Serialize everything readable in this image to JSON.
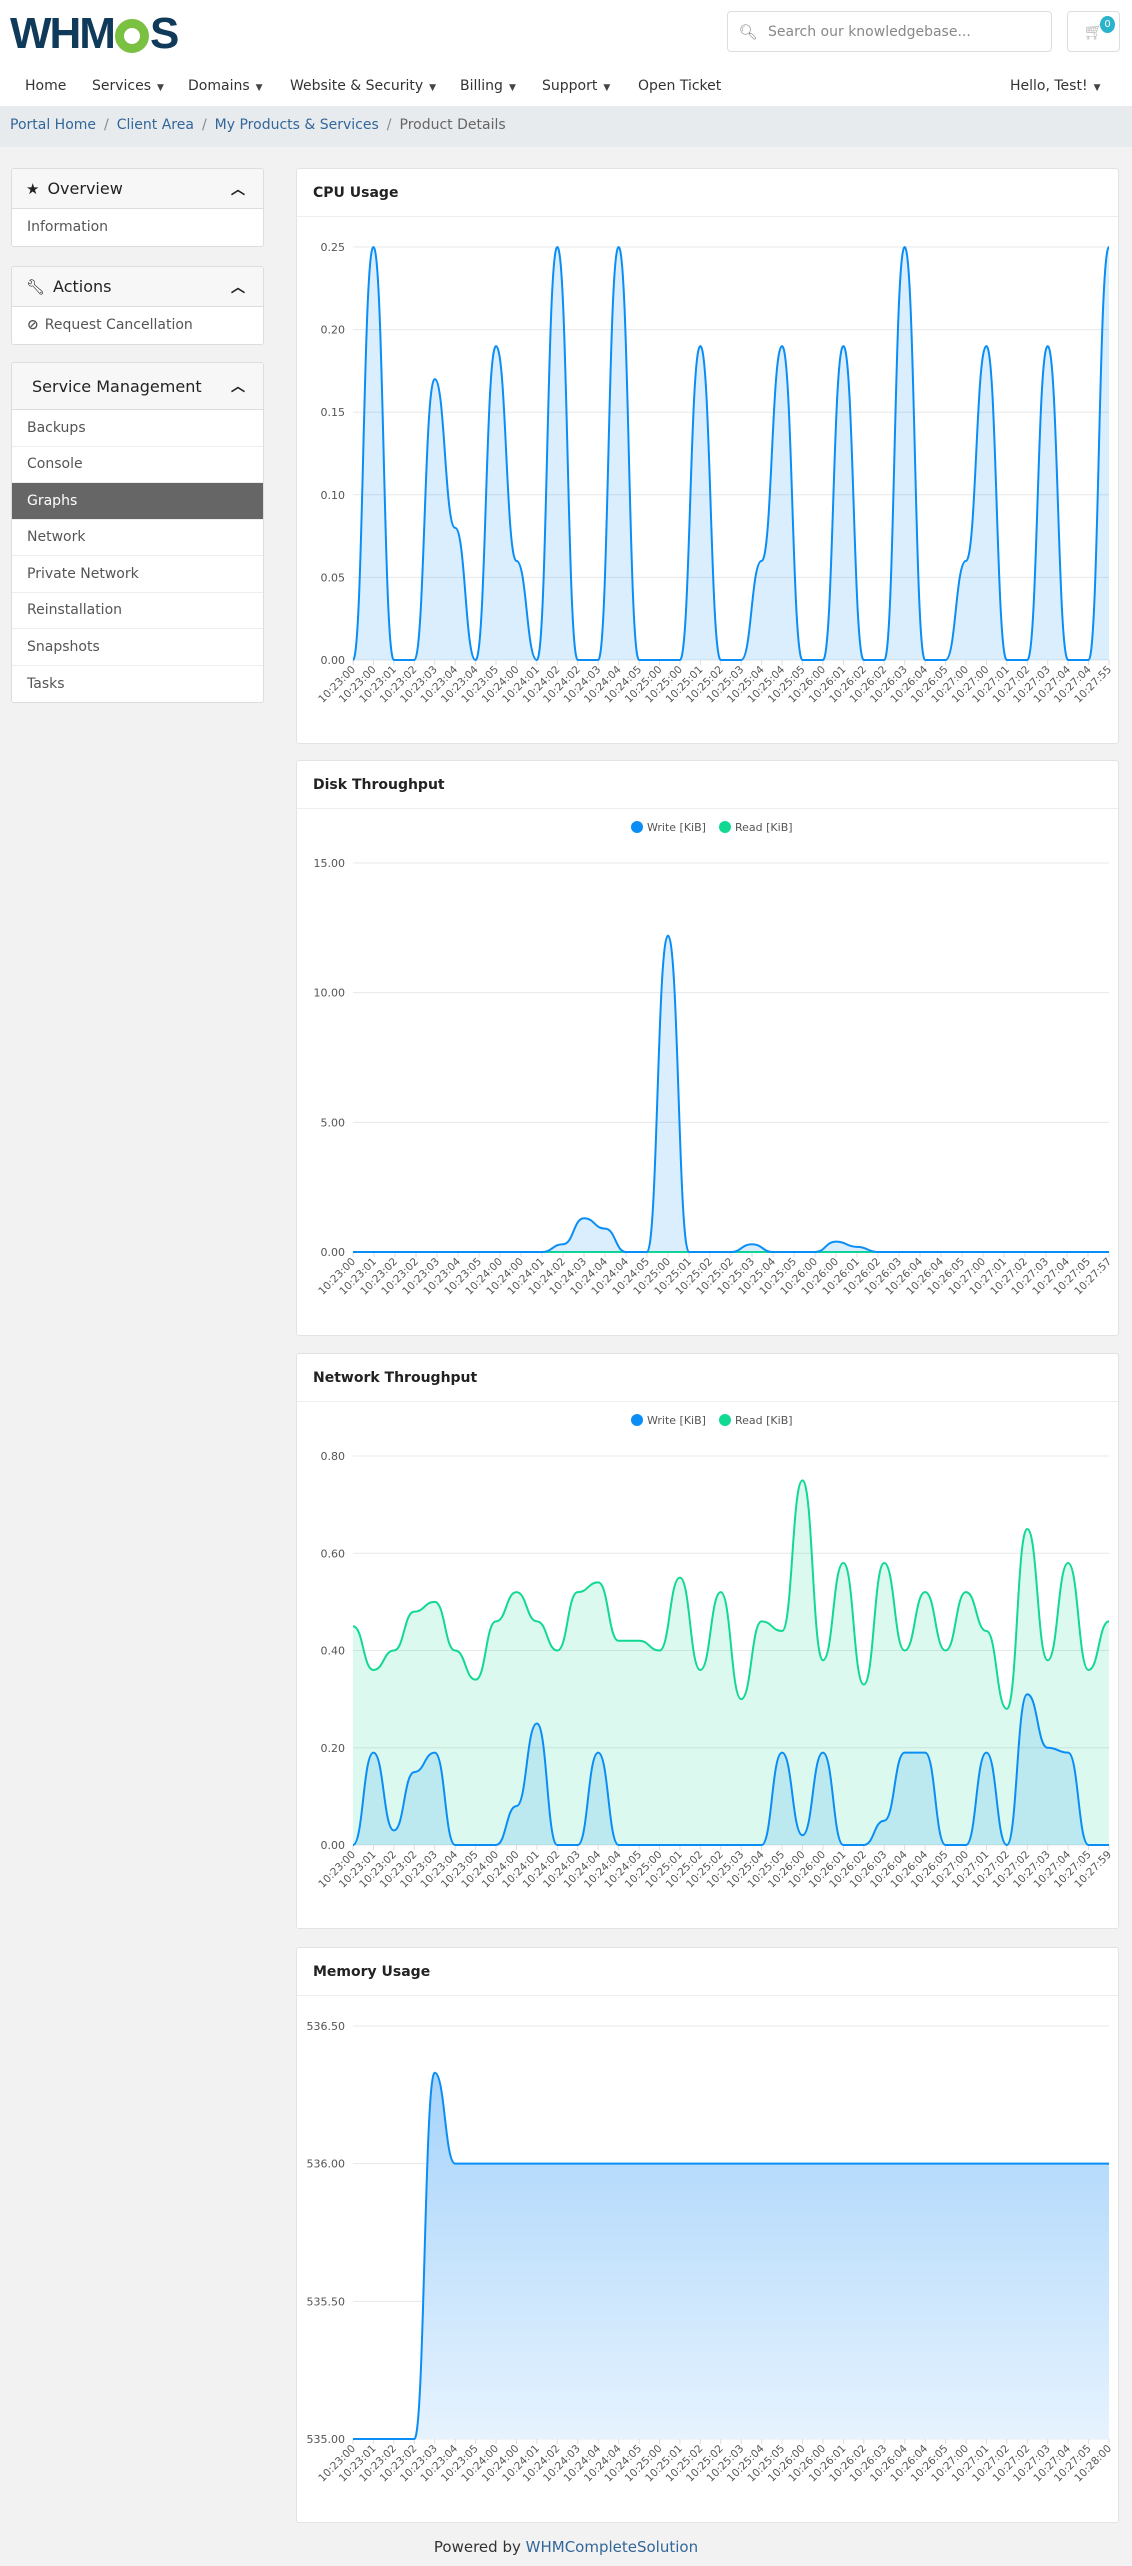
{
  "header": {
    "logo": "WHMCS",
    "search_placeholder": "Search our knowledgebase...",
    "cart_count": "0",
    "nav": [
      "Home",
      "Services",
      "Domains",
      "Website & Security",
      "Billing",
      "Support",
      "Open Ticket"
    ],
    "nav_dropdowns": [
      false,
      true,
      true,
      true,
      true,
      true,
      false
    ],
    "user_menu": "Hello, Test!"
  },
  "breadcrumb": [
    "Portal Home",
    "Client Area",
    "My Products & Services",
    "Product Details"
  ],
  "sidebar": {
    "overview": {
      "title": "Overview",
      "icon": "star-icon",
      "items": [
        "Information"
      ]
    },
    "actions": {
      "title": "Actions",
      "icon": "wrench-icon",
      "items": [
        "Request Cancellation"
      ]
    },
    "service_management": {
      "title": "Service Management",
      "items": [
        "Backups",
        "Console",
        "Graphs",
        "Network",
        "Private Network",
        "Reinstallation",
        "Snapshots",
        "Tasks"
      ],
      "active": "Graphs"
    }
  },
  "colors": {
    "write": "#0a8ef5",
    "read": "#12d992",
    "cpu": "#0a8ef5",
    "memory": "#0a8ef5"
  },
  "chart_data": [
    {
      "type": "area",
      "title": "CPU Usage",
      "ylim": [
        0,
        0.25
      ],
      "yticks": [
        "0.00",
        "0.05",
        "0.10",
        "0.15",
        "0.20",
        "0.25"
      ],
      "grid": true,
      "categories": [
        "10:23:00",
        "10:23:00",
        "10:23:01",
        "10:23:02",
        "10:23:03",
        "10:23:04",
        "10:23:04",
        "10:23:05",
        "10:24:00",
        "10:24:01",
        "10:24:02",
        "10:24:02",
        "10:24:03",
        "10:24:04",
        "10:24:05",
        "10:25:00",
        "10:25:00",
        "10:25:01",
        "10:25:02",
        "10:25:03",
        "10:25:04",
        "10:25:04",
        "10:25:05",
        "10:26:00",
        "10:26:01",
        "10:26:02",
        "10:26:02",
        "10:26:03",
        "10:26:04",
        "10:26:05",
        "10:27:00",
        "10:27:00",
        "10:27:01",
        "10:27:02",
        "10:27:03",
        "10:27:04",
        "10:27:04",
        "10:27:55"
      ],
      "series": [
        {
          "values": [
            0,
            0.25,
            0,
            0,
            0.17,
            0.08,
            0,
            0.19,
            0.06,
            0,
            0.25,
            0,
            0,
            0.25,
            0,
            0,
            0,
            0.19,
            0,
            0,
            0.06,
            0.19,
            0,
            0,
            0.19,
            0,
            0,
            0.25,
            0,
            0,
            0.06,
            0.19,
            0,
            0,
            0.19,
            0,
            0,
            0.25
          ]
        }
      ]
    },
    {
      "type": "area",
      "title": "Disk Throughput",
      "ylim": [
        0,
        15
      ],
      "yticks": [
        "0.00",
        "5.00",
        "10.00",
        "15.00"
      ],
      "grid": true,
      "legend": "top",
      "categories": [
        "10:23:00",
        "10:23:01",
        "10:23:02",
        "10:23:02",
        "10:23:03",
        "10:23:04",
        "10:23:05",
        "10:24:00",
        "10:24:00",
        "10:24:01",
        "10:24:02",
        "10:24:03",
        "10:24:04",
        "10:24:04",
        "10:24:05",
        "10:25:00",
        "10:25:01",
        "10:25:02",
        "10:25:02",
        "10:25:03",
        "10:25:04",
        "10:25:05",
        "10:26:00",
        "10:26:00",
        "10:26:01",
        "10:26:02",
        "10:26:03",
        "10:26:04",
        "10:26:04",
        "10:26:05",
        "10:27:00",
        "10:27:01",
        "10:27:02",
        "10:27:03",
        "10:27:04",
        "10:27:05",
        "10:27:57"
      ],
      "series": [
        {
          "name": "Write [KiB]",
          "values": [
            0,
            0,
            0,
            0,
            0,
            0,
            0,
            0,
            0,
            0,
            0.3,
            1.3,
            0.9,
            0,
            0,
            12.2,
            0,
            0,
            0,
            0.3,
            0,
            0,
            0,
            0.4,
            0.2,
            0,
            0,
            0,
            0,
            0,
            0,
            0,
            0,
            0,
            0,
            0,
            0
          ]
        },
        {
          "name": "Read [KiB]",
          "values": [
            0,
            0,
            0,
            0,
            0,
            0,
            0,
            0,
            0,
            0,
            0,
            0,
            0,
            0,
            0,
            0,
            0,
            0,
            0,
            0,
            0,
            0,
            0,
            0,
            0,
            0,
            0,
            0,
            0,
            0,
            0,
            0,
            0,
            0,
            0,
            0,
            0
          ]
        }
      ]
    },
    {
      "type": "area",
      "title": "Network Throughput",
      "ylim": [
        0,
        0.8
      ],
      "yticks": [
        "0.00",
        "0.20",
        "0.40",
        "0.60",
        "0.80"
      ],
      "grid": true,
      "legend": "top",
      "categories": [
        "10:23:00",
        "10:23:01",
        "10:23:02",
        "10:23:02",
        "10:23:03",
        "10:23:04",
        "10:23:05",
        "10:24:00",
        "10:24:00",
        "10:24:01",
        "10:24:02",
        "10:24:03",
        "10:24:04",
        "10:24:04",
        "10:24:05",
        "10:25:00",
        "10:25:01",
        "10:25:02",
        "10:25:02",
        "10:25:03",
        "10:25:04",
        "10:25:05",
        "10:26:00",
        "10:26:00",
        "10:26:01",
        "10:26:02",
        "10:26:03",
        "10:26:04",
        "10:26:04",
        "10:26:05",
        "10:27:00",
        "10:27:01",
        "10:27:02",
        "10:27:02",
        "10:27:03",
        "10:27:04",
        "10:27:05",
        "10:27:59"
      ],
      "series": [
        {
          "name": "Write [KiB]",
          "values": [
            0,
            0.19,
            0.03,
            0.15,
            0.19,
            0,
            0,
            0,
            0.08,
            0.25,
            0,
            0,
            0.19,
            0,
            0,
            0,
            0,
            0,
            0,
            0,
            0,
            0.19,
            0.02,
            0.19,
            0,
            0,
            0.05,
            0.19,
            0.19,
            0,
            0,
            0.19,
            0,
            0.31,
            0.2,
            0.19,
            0,
            0
          ]
        },
        {
          "name": "Read [KiB]",
          "values": [
            0.45,
            0.36,
            0.4,
            0.48,
            0.5,
            0.4,
            0.34,
            0.46,
            0.52,
            0.46,
            0.4,
            0.52,
            0.54,
            0.42,
            0.42,
            0.4,
            0.55,
            0.36,
            0.52,
            0.3,
            0.46,
            0.44,
            0.75,
            0.38,
            0.58,
            0.33,
            0.58,
            0.4,
            0.52,
            0.4,
            0.52,
            0.44,
            0.28,
            0.65,
            0.38,
            0.58,
            0.36,
            0.46
          ]
        }
      ]
    },
    {
      "type": "area",
      "title": "Memory Usage",
      "ylim": [
        535,
        536.5
      ],
      "yticks": [
        "535.00",
        "535.50",
        "536.00",
        "536.50"
      ],
      "grid": true,
      "categories": [
        "10:23:00",
        "10:23:01",
        "10:23:02",
        "10:23:02",
        "10:23:03",
        "10:23:04",
        "10:23:05",
        "10:24:00",
        "10:24:00",
        "10:24:01",
        "10:24:02",
        "10:24:03",
        "10:24:04",
        "10:24:04",
        "10:24:05",
        "10:25:00",
        "10:25:01",
        "10:25:02",
        "10:25:02",
        "10:25:03",
        "10:25:04",
        "10:25:05",
        "10:26:00",
        "10:26:00",
        "10:26:01",
        "10:26:02",
        "10:26:03",
        "10:26:04",
        "10:26:04",
        "10:26:05",
        "10:27:00",
        "10:27:01",
        "10:27:02",
        "10:27:02",
        "10:27:03",
        "10:27:04",
        "10:27:05",
        "10:28:00"
      ],
      "series": [
        {
          "values": [
            535,
            535,
            535,
            535,
            536.33,
            536,
            536,
            536,
            536,
            536,
            536,
            536,
            536,
            536,
            536,
            536,
            536,
            536,
            536,
            536,
            536,
            536,
            536,
            536,
            536,
            536,
            536,
            536,
            536,
            536,
            536,
            536,
            536,
            536,
            536,
            536,
            536,
            536
          ]
        }
      ]
    }
  ],
  "footer": {
    "text": "Powered by",
    "link": "WHMCompleteSolution"
  }
}
